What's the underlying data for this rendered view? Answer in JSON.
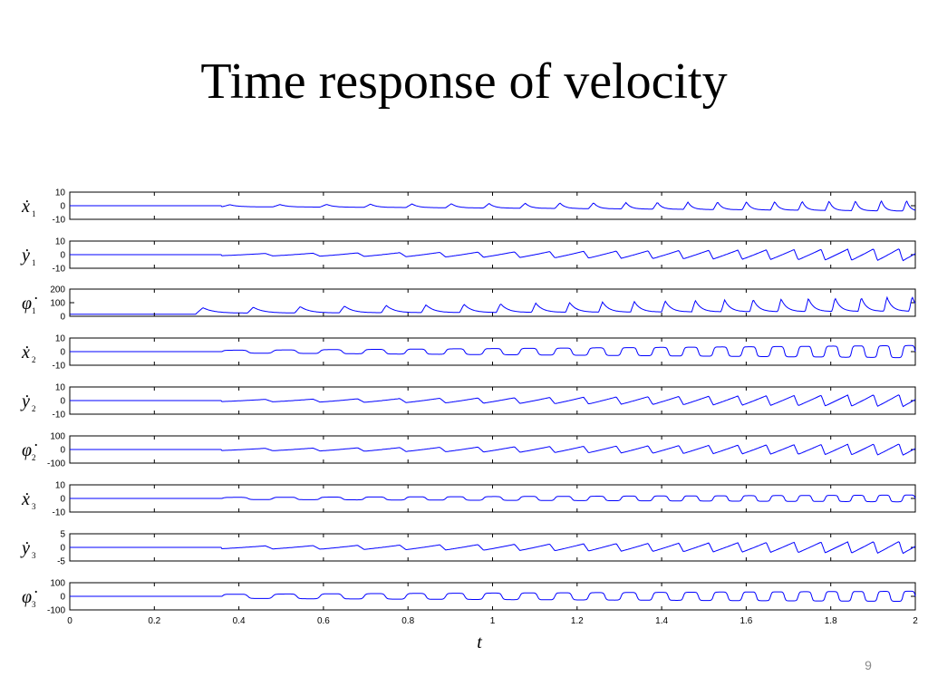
{
  "slide": {
    "title": "Time response of velocity",
    "page_number": "9"
  },
  "chart_data": {
    "type": "line",
    "xlabel": "t",
    "xlim": [
      0,
      2
    ],
    "xticks": [
      "0",
      "0.2",
      "0.4",
      "0.6",
      "0.8",
      "1",
      "1.2",
      "1.4",
      "1.6",
      "1.8",
      "2"
    ],
    "grid": false,
    "line_color": "#0000ff",
    "panels": [
      {
        "label": "ẋ",
        "subscript": "1",
        "ylim": [
          -10,
          10
        ],
        "yticks": [
          "10",
          "0",
          "-10"
        ],
        "start": 0.36,
        "growth": 1.3,
        "amp0": 1.5,
        "amp1": 8,
        "offset": 0,
        "shape": "spike"
      },
      {
        "label": "ẏ",
        "subscript": "1",
        "ylim": [
          -10,
          10
        ],
        "yticks": [
          "10",
          "0",
          "-10"
        ],
        "start": 0.36,
        "growth": 1.2,
        "amp0": 1.5,
        "amp1": 9,
        "offset": 0,
        "shape": "saw"
      },
      {
        "label": "φ̇",
        "subscript": "1",
        "ylim": [
          0,
          200
        ],
        "yticks": [
          "200",
          "100",
          "0"
        ],
        "start": 0.3,
        "growth": 1.2,
        "amp0": 40,
        "amp1": 110,
        "offset": 15,
        "shape": "pulse"
      },
      {
        "label": "ẋ",
        "subscript": "2",
        "ylim": [
          -10,
          10
        ],
        "yticks": [
          "10",
          "0",
          "-10"
        ],
        "start": 0.36,
        "growth": 1.1,
        "amp0": 2,
        "amp1": 9,
        "offset": 0,
        "shape": "square"
      },
      {
        "label": "ẏ",
        "subscript": "2",
        "ylim": [
          -10,
          10
        ],
        "yticks": [
          "10",
          "0",
          "-10"
        ],
        "start": 0.36,
        "growth": 1.2,
        "amp0": 1.5,
        "amp1": 9,
        "offset": 0,
        "shape": "saw"
      },
      {
        "label": "φ̇",
        "subscript": "2",
        "ylim": [
          -100,
          100
        ],
        "yticks": [
          "100",
          "0",
          "-100"
        ],
        "start": 0.36,
        "growth": 1.2,
        "amp0": 15,
        "amp1": 85,
        "offset": 0,
        "shape": "saw"
      },
      {
        "label": "ẋ",
        "subscript": "3",
        "ylim": [
          -10,
          10
        ],
        "yticks": [
          "10",
          "0",
          "-10"
        ],
        "start": 0.36,
        "growth": 1.1,
        "amp0": 1.5,
        "amp1": 5,
        "offset": 0,
        "shape": "square"
      },
      {
        "label": "ẏ",
        "subscript": "3",
        "ylim": [
          -5,
          5
        ],
        "yticks": [
          "5",
          "0",
          "-5"
        ],
        "start": 0.36,
        "growth": 1.2,
        "amp0": 1,
        "amp1": 4.5,
        "offset": 0,
        "shape": "saw"
      },
      {
        "label": "φ̇",
        "subscript": "3",
        "ylim": [
          -100,
          100
        ],
        "yticks": [
          "100",
          "0",
          "-100"
        ],
        "start": 0.36,
        "growth": 1.0,
        "amp0": 30,
        "amp1": 75,
        "offset": 0,
        "shape": "square"
      }
    ]
  }
}
